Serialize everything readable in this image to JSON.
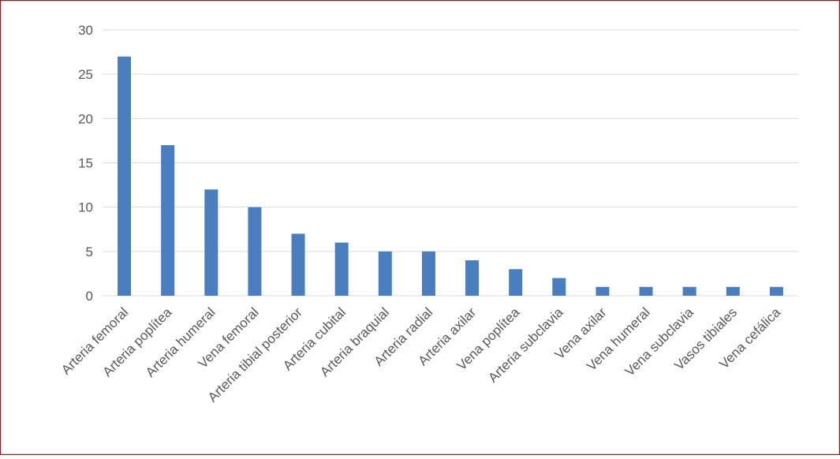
{
  "chart_data": {
    "type": "bar",
    "categories": [
      "Arteria femoral",
      "Arteria poplítea",
      "Arteria humeral",
      "Vena femoral",
      "Arteria tibial posterior",
      "Arteria cubital",
      "Arteria braquial",
      "Arteria radial",
      "Arteria axilar",
      "Vena poplítea",
      "Arteria subclavia",
      "Vena axilar",
      "Vena humeral",
      "Vena subclavia",
      "Vasos tibiales",
      "Vena cefálica"
    ],
    "values": [
      27,
      17,
      12,
      10,
      7,
      6,
      5,
      5,
      4,
      3,
      2,
      1,
      1,
      1,
      1,
      1
    ],
    "color": "#4a7ebf",
    "ylim": [
      0,
      30
    ],
    "yticks": [
      0,
      5,
      10,
      15,
      20,
      25,
      30
    ],
    "grid": true
  }
}
